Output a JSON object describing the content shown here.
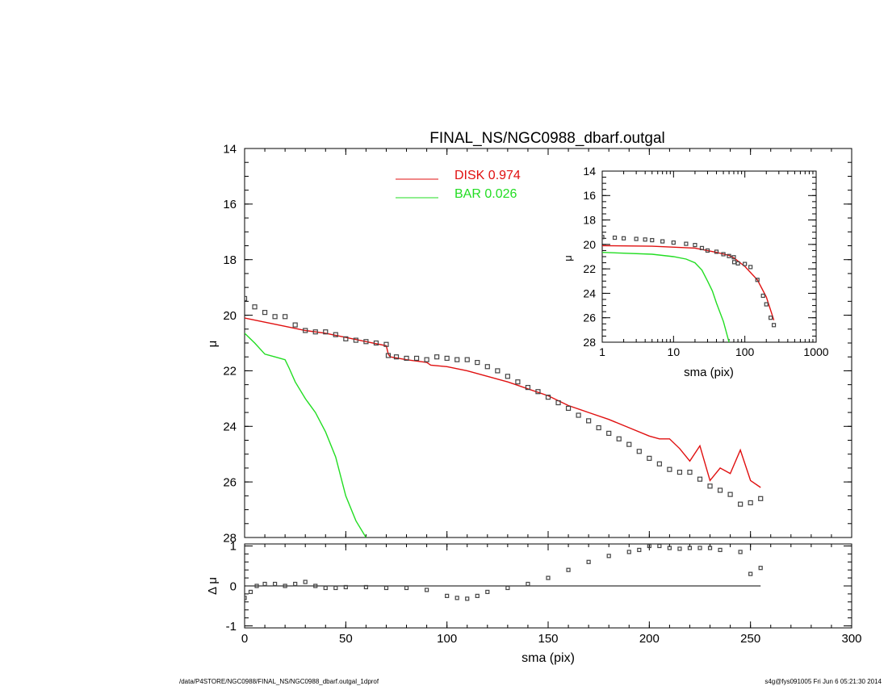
{
  "chart_data": [
    {
      "type": "scatter",
      "title": "FINAL_NS/NGC0988_dbarf.outgal",
      "xlabel": "",
      "ylabel": "μ",
      "xlim": [
        0,
        300
      ],
      "ylim": [
        28,
        14
      ],
      "y_inverted": true,
      "x_ticks": [
        0,
        50,
        100,
        150,
        200,
        250,
        300
      ],
      "y_ticks": [
        14,
        16,
        18,
        20,
        22,
        24,
        26,
        28
      ],
      "legend_position": "top-center",
      "series": [
        {
          "name": "DISK  0.974",
          "style": "line",
          "color": "#e01010",
          "x": [
            0,
            10,
            20,
            30,
            40,
            50,
            60,
            70,
            71,
            72,
            80,
            90,
            92,
            100,
            110,
            120,
            130,
            140,
            150,
            160,
            170,
            180,
            190,
            200,
            205,
            210,
            215,
            220,
            225,
            230,
            235,
            240,
            245,
            250,
            255
          ],
          "y": [
            20.1,
            20.25,
            20.4,
            20.55,
            20.65,
            20.8,
            20.95,
            21.1,
            21.4,
            21.5,
            21.6,
            21.7,
            21.8,
            21.85,
            22.0,
            22.2,
            22.4,
            22.65,
            22.9,
            23.25,
            23.5,
            23.75,
            24.05,
            24.35,
            24.45,
            24.45,
            24.8,
            25.25,
            24.7,
            25.95,
            25.5,
            25.7,
            24.85,
            25.95,
            26.2
          ]
        },
        {
          "name": "BAR  0.026",
          "style": "line",
          "color": "#22dd22",
          "x": [
            0,
            5,
            10,
            15,
            20,
            22,
            25,
            30,
            35,
            40,
            45,
            50,
            55,
            60
          ],
          "y": [
            20.65,
            21.0,
            21.4,
            21.5,
            21.6,
            21.9,
            22.4,
            23.0,
            23.5,
            24.2,
            25.1,
            26.5,
            27.4,
            28.0
          ]
        },
        {
          "name": "",
          "style": "markers",
          "color": "#444444",
          "x": [
            0,
            5,
            10,
            15,
            20,
            25,
            30,
            35,
            40,
            45,
            50,
            55,
            60,
            65,
            70,
            71,
            75,
            80,
            85,
            90,
            95,
            100,
            105,
            110,
            115,
            120,
            125,
            130,
            135,
            140,
            145,
            150,
            155,
            160,
            165,
            170,
            175,
            180,
            185,
            190,
            195,
            200,
            205,
            210,
            215,
            220,
            225,
            230,
            235,
            240,
            245,
            250,
            255
          ],
          "y": [
            19.4,
            19.7,
            19.9,
            20.05,
            20.05,
            20.35,
            20.55,
            20.6,
            20.6,
            20.7,
            20.85,
            20.9,
            20.95,
            21.0,
            21.05,
            21.45,
            21.5,
            21.55,
            21.55,
            21.6,
            21.5,
            21.55,
            21.6,
            21.6,
            21.7,
            21.85,
            22.0,
            22.2,
            22.4,
            22.6,
            22.75,
            22.95,
            23.15,
            23.35,
            23.6,
            23.8,
            24.05,
            24.25,
            24.45,
            24.65,
            24.9,
            25.15,
            25.35,
            25.55,
            25.65,
            25.65,
            25.9,
            26.15,
            26.3,
            26.45,
            26.8,
            26.75,
            26.6
          ]
        }
      ]
    },
    {
      "type": "line",
      "title": "",
      "xlabel": "sma (pix)",
      "ylabel": "μ",
      "x_scale": "log",
      "xlim": [
        1,
        1000
      ],
      "ylim": [
        28,
        14
      ],
      "y_inverted": true,
      "x_ticks": [
        1,
        10,
        100,
        1000
      ],
      "y_ticks": [
        14,
        16,
        18,
        20,
        22,
        24,
        26,
        28
      ],
      "series": [
        {
          "name": "",
          "style": "line",
          "color": "#e01010",
          "x": [
            1,
            5,
            20,
            40,
            60,
            70,
            100,
            150,
            200,
            255
          ],
          "y": [
            20.1,
            20.15,
            20.3,
            20.65,
            20.9,
            21.1,
            21.8,
            22.9,
            24.3,
            26.2
          ]
        },
        {
          "name": "",
          "style": "line",
          "color": "#22dd22",
          "x": [
            1,
            5,
            10,
            15,
            20,
            25,
            30,
            35,
            40,
            50,
            60
          ],
          "y": [
            20.65,
            20.8,
            21.0,
            21.2,
            21.5,
            22.1,
            23.0,
            23.8,
            24.8,
            26.3,
            28.0
          ]
        },
        {
          "name": "",
          "style": "markers",
          "color": "#444444",
          "x": [
            1,
            1.5,
            2,
            3,
            4,
            5,
            7,
            10,
            15,
            20,
            25,
            30,
            40,
            50,
            60,
            70,
            71,
            80,
            100,
            120,
            150,
            180,
            200,
            230,
            255
          ],
          "y": [
            19.4,
            19.45,
            19.5,
            19.55,
            19.6,
            19.65,
            19.75,
            19.85,
            19.95,
            20.05,
            20.3,
            20.5,
            20.6,
            20.8,
            20.95,
            21.05,
            21.45,
            21.55,
            21.6,
            21.85,
            22.9,
            24.2,
            24.9,
            26.0,
            26.6
          ]
        }
      ]
    },
    {
      "type": "scatter",
      "title": "",
      "xlabel": "sma (pix)",
      "ylabel": "Δ μ",
      "xlim": [
        0,
        300
      ],
      "ylim": [
        -1.05,
        1.05
      ],
      "x_ticks": [
        0,
        50,
        100,
        150,
        200,
        250,
        300
      ],
      "y_ticks": [
        -1,
        0,
        1
      ],
      "series": [
        {
          "name": "",
          "style": "markers",
          "color": "#444444",
          "x": [
            0,
            3,
            6,
            10,
            15,
            20,
            25,
            30,
            35,
            40,
            45,
            50,
            60,
            70,
            80,
            90,
            100,
            105,
            110,
            115,
            120,
            130,
            140,
            150,
            160,
            170,
            180,
            190,
            195,
            200,
            205,
            210,
            215,
            220,
            225,
            230,
            235,
            245,
            250,
            255
          ],
          "y": [
            -0.3,
            -0.15,
            0.0,
            0.05,
            0.05,
            0.0,
            0.05,
            0.1,
            0.0,
            -0.05,
            -0.05,
            -0.03,
            -0.03,
            -0.05,
            -0.05,
            -0.1,
            -0.25,
            -0.3,
            -0.32,
            -0.25,
            -0.15,
            -0.05,
            0.05,
            0.2,
            0.4,
            0.6,
            0.75,
            0.85,
            0.9,
            1.0,
            1.0,
            0.95,
            0.93,
            0.95,
            0.95,
            0.95,
            0.9,
            0.85,
            0.3,
            0.45
          ]
        }
      ]
    }
  ],
  "footer": {
    "left": "/data/P4STORE/NGC0988/FINAL_NS/NGC0988_dbarf.outgal_1dprof",
    "right": "s4g@fys091005  Fri Jun  6 05:21:30 2014"
  }
}
